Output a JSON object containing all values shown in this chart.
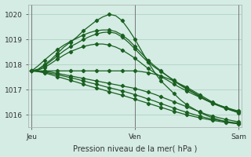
{
  "title": "",
  "xlabel": "Pression niveau de la mer( hPa )",
  "ylabel": "",
  "bg_color": "#d4ece4",
  "grid_color": "#a8ccbc",
  "line_color": "#1a6020",
  "ylim": [
    1015.5,
    1020.4
  ],
  "xtick_labels": [
    "Jeu",
    "Ven",
    "Sam"
  ],
  "xtick_positions": [
    0,
    16,
    32
  ],
  "ytick_values": [
    1016,
    1017,
    1018,
    1019,
    1020
  ],
  "n_points": 33,
  "series": [
    [
      1017.75,
      1017.82,
      1018.0,
      1018.2,
      1018.45,
      1018.7,
      1018.9,
      1019.1,
      1019.35,
      1019.55,
      1019.75,
      1019.9,
      1020.0,
      1019.95,
      1019.75,
      1019.4,
      1019.0,
      1018.55,
      1018.1,
      1017.7,
      1017.35,
      1017.1,
      1016.85,
      1016.6,
      1016.4,
      1016.25,
      1016.1,
      1015.98,
      1015.88,
      1015.8,
      1015.73,
      1015.68,
      1015.65
    ],
    [
      1017.75,
      1017.8,
      1017.95,
      1018.15,
      1018.35,
      1018.55,
      1018.72,
      1018.85,
      1019.0,
      1019.12,
      1019.22,
      1019.28,
      1019.3,
      1019.25,
      1019.1,
      1018.88,
      1018.62,
      1018.35,
      1018.1,
      1017.9,
      1017.72,
      1017.55,
      1017.38,
      1017.2,
      1017.05,
      1016.9,
      1016.75,
      1016.6,
      1016.48,
      1016.38,
      1016.28,
      1016.2,
      1016.12
    ],
    [
      1017.75,
      1017.78,
      1017.88,
      1018.05,
      1018.22,
      1018.38,
      1018.52,
      1018.62,
      1018.72,
      1018.78,
      1018.82,
      1018.82,
      1018.78,
      1018.7,
      1018.58,
      1018.42,
      1018.25,
      1018.05,
      1017.85,
      1017.68,
      1017.52,
      1017.38,
      1017.22,
      1017.08,
      1016.95,
      1016.82,
      1016.7,
      1016.58,
      1016.48,
      1016.38,
      1016.3,
      1016.22,
      1016.15
    ],
    [
      1017.75,
      1017.95,
      1018.18,
      1018.4,
      1018.6,
      1018.78,
      1018.92,
      1019.05,
      1019.18,
      1019.28,
      1019.35,
      1019.38,
      1019.38,
      1019.32,
      1019.18,
      1018.98,
      1018.72,
      1018.45,
      1018.18,
      1017.95,
      1017.75,
      1017.55,
      1017.35,
      1017.18,
      1017.02,
      1016.88,
      1016.72,
      1016.58,
      1016.45,
      1016.35,
      1016.25,
      1016.17,
      1016.1
    ],
    [
      1017.75,
      1017.75,
      1017.75,
      1017.75,
      1017.75,
      1017.75,
      1017.75,
      1017.75,
      1017.75,
      1017.75,
      1017.75,
      1017.75,
      1017.75,
      1017.75,
      1017.75,
      1017.75,
      1017.75,
      1017.72,
      1017.68,
      1017.62,
      1017.55,
      1017.45,
      1017.35,
      1017.22,
      1017.1,
      1016.95,
      1016.8,
      1016.65,
      1016.5,
      1016.38,
      1016.27,
      1016.17,
      1016.08
    ],
    [
      1017.75,
      1017.75,
      1017.72,
      1017.7,
      1017.65,
      1017.6,
      1017.55,
      1017.5,
      1017.45,
      1017.4,
      1017.35,
      1017.3,
      1017.25,
      1017.2,
      1017.15,
      1017.1,
      1017.05,
      1016.98,
      1016.9,
      1016.82,
      1016.72,
      1016.62,
      1016.52,
      1016.42,
      1016.32,
      1016.22,
      1016.12,
      1016.02,
      1015.95,
      1015.88,
      1015.82,
      1015.77,
      1015.72
    ],
    [
      1017.75,
      1017.73,
      1017.7,
      1017.65,
      1017.6,
      1017.54,
      1017.48,
      1017.42,
      1017.35,
      1017.28,
      1017.22,
      1017.15,
      1017.08,
      1017.02,
      1016.95,
      1016.88,
      1016.8,
      1016.72,
      1016.63,
      1016.55,
      1016.45,
      1016.36,
      1016.27,
      1016.18,
      1016.1,
      1016.02,
      1015.95,
      1015.88,
      1015.82,
      1015.78,
      1015.74,
      1015.7,
      1015.67
    ],
    [
      1017.75,
      1017.72,
      1017.67,
      1017.6,
      1017.52,
      1017.45,
      1017.37,
      1017.3,
      1017.22,
      1017.14,
      1017.07,
      1017.0,
      1016.92,
      1016.85,
      1016.78,
      1016.7,
      1016.62,
      1016.54,
      1016.46,
      1016.38,
      1016.3,
      1016.22,
      1016.14,
      1016.07,
      1016.0,
      1015.94,
      1015.88,
      1015.83,
      1015.78,
      1015.74,
      1015.7,
      1015.67,
      1015.64
    ]
  ],
  "marker": "D",
  "markersize": 2.2,
  "linewidth": 0.9
}
